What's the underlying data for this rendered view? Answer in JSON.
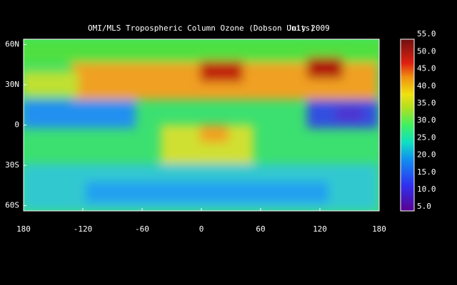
{
  "title": "OMI/MLS Tropospheric Column Ozone (Dobson Units)",
  "date": "July 2009",
  "map": {
    "lon_range": [
      -180,
      180
    ],
    "lat_range": [
      -64,
      64
    ],
    "lon_ticks": [
      {
        "value": -180,
        "label": "180"
      },
      -120,
      -60,
      0,
      60,
      120,
      180
    ],
    "lat_ticks": [
      {
        "value": 60,
        "label": "60N"
      },
      {
        "value": 30,
        "label": "30N"
      },
      0,
      {
        "value": -30,
        "label": "30S"
      },
      {
        "value": -60,
        "label": "60S"
      }
    ]
  },
  "colorbar": {
    "range": [
      3.8,
      53.6
    ],
    "ticks": [
      {
        "value": 5,
        "label": "5.0"
      },
      {
        "value": 10,
        "label": "10.0"
      },
      {
        "value": 15,
        "label": "15.0"
      },
      {
        "value": 20,
        "label": "20.0"
      },
      {
        "value": 25,
        "label": "25.0"
      },
      {
        "value": 30,
        "label": "30.0"
      },
      {
        "value": 35,
        "label": "35.0"
      },
      {
        "value": 40,
        "label": "40.0"
      },
      {
        "value": 45,
        "label": "45.0"
      },
      {
        "value": 50,
        "label": "50.0"
      },
      {
        "value": 55,
        "label": "55.0"
      }
    ]
  }
}
